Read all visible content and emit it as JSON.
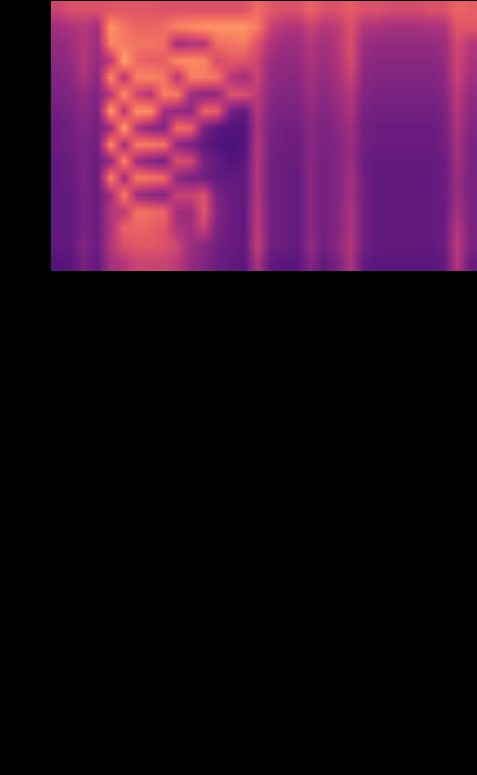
{
  "chart_data": {
    "type": "heatmap",
    "tick_labels": false,
    "zlim": [
      0,
      1
    ],
    "cells": [
      [
        0.55,
        0.6,
        0.6,
        0.6,
        0.62,
        0.62,
        0.62,
        0.62,
        0.6,
        0.6,
        0.6,
        0.6,
        0.6,
        0.6,
        0.6,
        0.68,
        0.62,
        0.6,
        0.6,
        0.66,
        0.6,
        0.6,
        0.64,
        0.6,
        0.6,
        0.58,
        0.58,
        0.58,
        0.6,
        0.6,
        0.66,
        0.64
      ],
      [
        0.45,
        0.48,
        0.5,
        0.46,
        0.78,
        0.7,
        0.66,
        0.66,
        0.68,
        0.74,
        0.76,
        0.78,
        0.78,
        0.78,
        0.78,
        0.72,
        0.55,
        0.5,
        0.48,
        0.55,
        0.5,
        0.52,
        0.6,
        0.5,
        0.48,
        0.46,
        0.46,
        0.46,
        0.48,
        0.48,
        0.62,
        0.62
      ],
      [
        0.42,
        0.44,
        0.5,
        0.44,
        0.75,
        0.72,
        0.7,
        0.7,
        0.68,
        0.45,
        0.48,
        0.5,
        0.68,
        0.7,
        0.72,
        0.6,
        0.48,
        0.44,
        0.44,
        0.5,
        0.46,
        0.5,
        0.6,
        0.44,
        0.42,
        0.42,
        0.42,
        0.42,
        0.42,
        0.44,
        0.58,
        0.5
      ],
      [
        0.4,
        0.42,
        0.5,
        0.42,
        0.5,
        0.82,
        0.66,
        0.64,
        0.64,
        0.76,
        0.76,
        0.74,
        0.58,
        0.62,
        0.62,
        0.56,
        0.44,
        0.42,
        0.42,
        0.48,
        0.44,
        0.48,
        0.58,
        0.42,
        0.4,
        0.4,
        0.4,
        0.4,
        0.4,
        0.42,
        0.56,
        0.48
      ],
      [
        0.38,
        0.4,
        0.48,
        0.4,
        0.76,
        0.5,
        0.74,
        0.74,
        0.7,
        0.5,
        0.72,
        0.72,
        0.7,
        0.5,
        0.45,
        0.55,
        0.42,
        0.4,
        0.4,
        0.46,
        0.42,
        0.46,
        0.55,
        0.4,
        0.38,
        0.38,
        0.38,
        0.38,
        0.38,
        0.4,
        0.55,
        0.45
      ],
      [
        0.36,
        0.38,
        0.42,
        0.38,
        0.5,
        0.76,
        0.55,
        0.5,
        0.72,
        0.72,
        0.45,
        0.4,
        0.42,
        0.6,
        0.6,
        0.52,
        0.4,
        0.38,
        0.38,
        0.44,
        0.4,
        0.44,
        0.5,
        0.38,
        0.36,
        0.36,
        0.36,
        0.36,
        0.36,
        0.38,
        0.52,
        0.42
      ],
      [
        0.34,
        0.36,
        0.4,
        0.36,
        0.8,
        0.5,
        0.78,
        0.76,
        0.45,
        0.42,
        0.4,
        0.66,
        0.64,
        0.34,
        0.3,
        0.5,
        0.38,
        0.36,
        0.36,
        0.42,
        0.38,
        0.42,
        0.48,
        0.36,
        0.34,
        0.34,
        0.34,
        0.34,
        0.34,
        0.36,
        0.5,
        0.4
      ],
      [
        0.32,
        0.34,
        0.38,
        0.34,
        0.45,
        0.8,
        0.48,
        0.4,
        0.38,
        0.68,
        0.66,
        0.36,
        0.28,
        0.26,
        0.26,
        0.48,
        0.36,
        0.34,
        0.34,
        0.4,
        0.36,
        0.4,
        0.45,
        0.34,
        0.32,
        0.32,
        0.32,
        0.32,
        0.32,
        0.34,
        0.48,
        0.38
      ],
      [
        0.32,
        0.34,
        0.36,
        0.34,
        0.76,
        0.45,
        0.72,
        0.72,
        0.7,
        0.4,
        0.36,
        0.3,
        0.26,
        0.24,
        0.26,
        0.5,
        0.36,
        0.34,
        0.32,
        0.4,
        0.36,
        0.38,
        0.44,
        0.34,
        0.32,
        0.32,
        0.32,
        0.32,
        0.32,
        0.34,
        0.46,
        0.36
      ],
      [
        0.3,
        0.32,
        0.36,
        0.32,
        0.42,
        0.74,
        0.44,
        0.38,
        0.36,
        0.6,
        0.58,
        0.36,
        0.3,
        0.26,
        0.28,
        0.5,
        0.34,
        0.32,
        0.32,
        0.4,
        0.34,
        0.38,
        0.44,
        0.32,
        0.3,
        0.3,
        0.3,
        0.3,
        0.3,
        0.32,
        0.46,
        0.36
      ],
      [
        0.3,
        0.32,
        0.36,
        0.32,
        0.74,
        0.45,
        0.72,
        0.7,
        0.68,
        0.4,
        0.36,
        0.34,
        0.3,
        0.3,
        0.3,
        0.5,
        0.34,
        0.32,
        0.3,
        0.4,
        0.34,
        0.38,
        0.46,
        0.34,
        0.3,
        0.3,
        0.3,
        0.3,
        0.3,
        0.32,
        0.44,
        0.36
      ],
      [
        0.3,
        0.3,
        0.36,
        0.32,
        0.45,
        0.72,
        0.44,
        0.4,
        0.38,
        0.55,
        0.55,
        0.6,
        0.36,
        0.32,
        0.3,
        0.5,
        0.34,
        0.32,
        0.3,
        0.4,
        0.34,
        0.38,
        0.46,
        0.34,
        0.3,
        0.3,
        0.3,
        0.3,
        0.3,
        0.32,
        0.44,
        0.36
      ],
      [
        0.3,
        0.3,
        0.36,
        0.32,
        0.5,
        0.52,
        0.7,
        0.68,
        0.66,
        0.45,
        0.44,
        0.62,
        0.38,
        0.32,
        0.3,
        0.52,
        0.34,
        0.32,
        0.3,
        0.4,
        0.34,
        0.38,
        0.48,
        0.34,
        0.3,
        0.3,
        0.3,
        0.3,
        0.3,
        0.32,
        0.46,
        0.36
      ],
      [
        0.3,
        0.3,
        0.36,
        0.32,
        0.48,
        0.65,
        0.66,
        0.64,
        0.62,
        0.48,
        0.45,
        0.55,
        0.36,
        0.32,
        0.3,
        0.52,
        0.34,
        0.32,
        0.3,
        0.4,
        0.34,
        0.38,
        0.48,
        0.34,
        0.3,
        0.3,
        0.3,
        0.3,
        0.3,
        0.32,
        0.5,
        0.36
      ],
      [
        0.3,
        0.3,
        0.38,
        0.32,
        0.5,
        0.6,
        0.62,
        0.62,
        0.6,
        0.56,
        0.44,
        0.4,
        0.34,
        0.32,
        0.3,
        0.54,
        0.34,
        0.32,
        0.3,
        0.42,
        0.34,
        0.4,
        0.5,
        0.34,
        0.3,
        0.3,
        0.3,
        0.3,
        0.3,
        0.32,
        0.52,
        0.36
      ],
      [
        0.26,
        0.28,
        0.36,
        0.3,
        0.46,
        0.5,
        0.56,
        0.55,
        0.55,
        0.52,
        0.42,
        0.38,
        0.32,
        0.3,
        0.28,
        0.48,
        0.3,
        0.28,
        0.28,
        0.38,
        0.3,
        0.36,
        0.48,
        0.3,
        0.28,
        0.28,
        0.28,
        0.28,
        0.28,
        0.3,
        0.5,
        0.32
      ]
    ]
  }
}
